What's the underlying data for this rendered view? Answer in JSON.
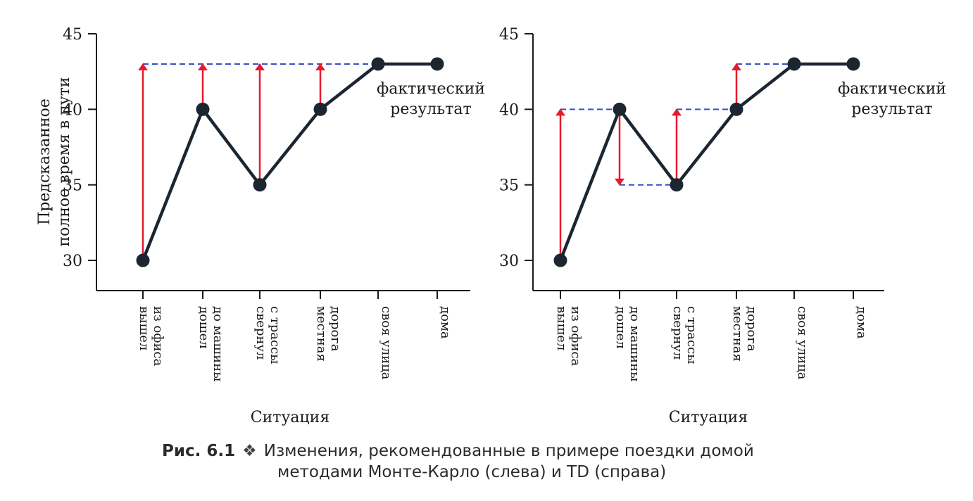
{
  "chart_data": [
    {
      "type": "line",
      "title": "",
      "method": "Monte Carlo",
      "ylabel_lines": [
        "Предсказанное",
        "полное время в пути"
      ],
      "xlabel": "Ситуация",
      "ylim": [
        28,
        45
      ],
      "yticks": [
        30,
        35,
        40,
        45
      ],
      "categories": [
        [
          "вышел",
          "из офиса"
        ],
        [
          "дошел",
          "до машины"
        ],
        [
          "свернул",
          "с трассы"
        ],
        [
          "местная",
          "дорога"
        ],
        [
          "своя улица"
        ],
        [
          "дома"
        ]
      ],
      "values": [
        30,
        40,
        35,
        40,
        43,
        43
      ],
      "target_lines": [
        {
          "from_index": 0,
          "to_index": 5,
          "y": 43
        }
      ],
      "arrows": [
        {
          "index": 0,
          "from": 30,
          "to": 43
        },
        {
          "index": 1,
          "from": 40,
          "to": 43
        },
        {
          "index": 2,
          "from": 35,
          "to": 43
        },
        {
          "index": 3,
          "from": 40,
          "to": 43
        }
      ],
      "annotation_lines": [
        "фактический",
        "результат"
      ],
      "line_color": "#1b2631",
      "arrow_color": "#e8192c",
      "dash_color": "#3a4fc7"
    },
    {
      "type": "line",
      "title": "",
      "method": "TD",
      "ylabel_lines": [],
      "xlabel": "Ситуация",
      "ylim": [
        28,
        45
      ],
      "yticks": [
        30,
        35,
        40,
        45
      ],
      "categories": [
        [
          "вышел",
          "из офиса"
        ],
        [
          "дошел",
          "до машины"
        ],
        [
          "свернул",
          "с трассы"
        ],
        [
          "местная",
          "дорога"
        ],
        [
          "своя улица"
        ],
        [
          "дома"
        ]
      ],
      "values": [
        30,
        40,
        35,
        40,
        43,
        43
      ],
      "target_lines": [
        {
          "from_index": 0,
          "to_index": 1,
          "y": 40
        },
        {
          "from_index": 1,
          "to_index": 2,
          "y": 35
        },
        {
          "from_index": 2,
          "to_index": 3,
          "y": 40
        },
        {
          "from_index": 3,
          "to_index": 4,
          "y": 43
        }
      ],
      "arrows": [
        {
          "index": 0,
          "from": 30,
          "to": 40
        },
        {
          "index": 1,
          "from": 40,
          "to": 35
        },
        {
          "index": 2,
          "from": 35,
          "to": 40
        },
        {
          "index": 3,
          "from": 40,
          "to": 43
        }
      ],
      "annotation_lines": [
        "фактический",
        "результат"
      ],
      "line_color": "#1b2631",
      "arrow_color": "#e8192c",
      "dash_color": "#3a4fc7"
    }
  ],
  "caption": {
    "number": "Рис. 6.1",
    "symbol": "❖",
    "line1": "Изменения, рекомендованные в примере поездки домой",
    "line2": "методами Монте-Карло (слева) и TD (справа)"
  }
}
